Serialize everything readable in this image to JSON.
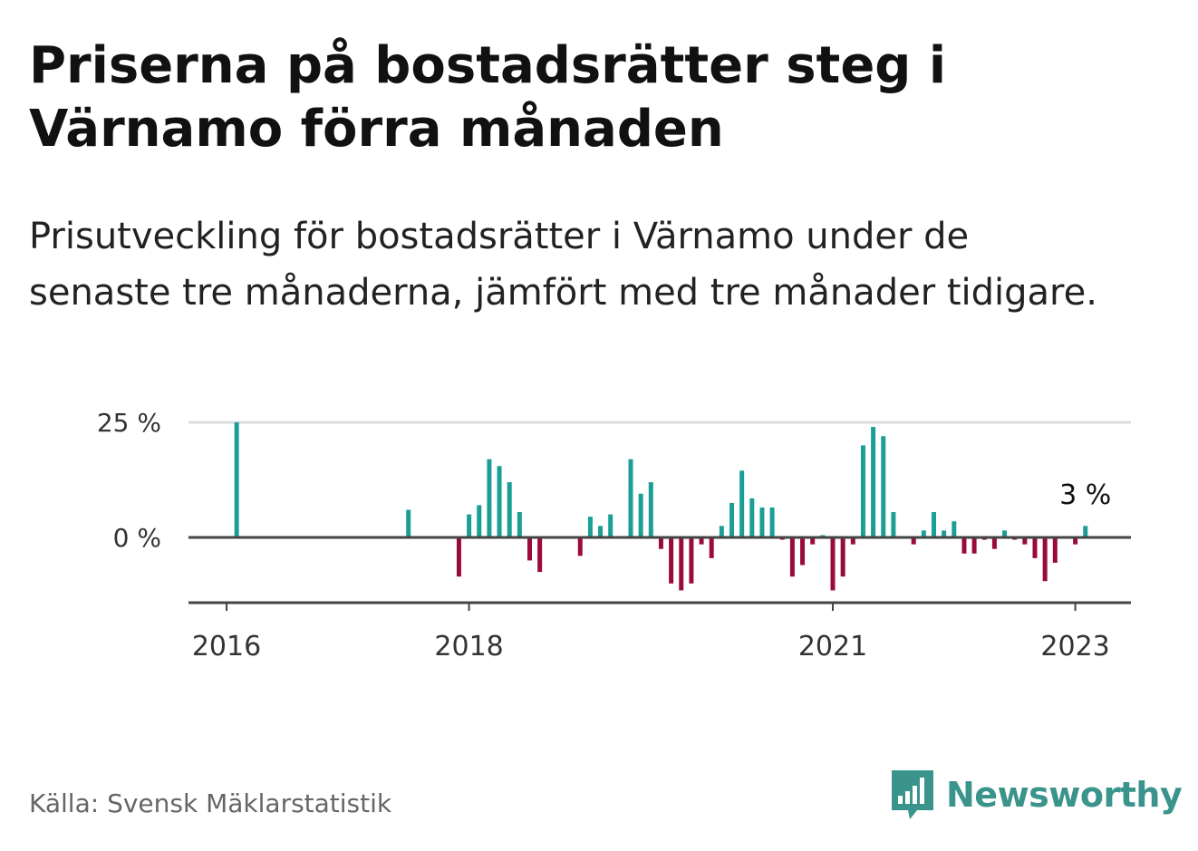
{
  "title": "Priserna på bostadsrätter steg i Värnamo förra månaden",
  "subtitle": "Prisutveckling för bostadsrätter i Värnamo under de senaste tre månaderna, jämfört med tre månader tidigare.",
  "source": "Källa: Svensk Mäklarstatistik",
  "logo_text": "Newsworthy",
  "colors": {
    "positive": "#1a9e96",
    "negative": "#9b0a3c",
    "axis": "#444444",
    "grid": "#dddddd",
    "logo": "#3a948c"
  },
  "chart_data": {
    "type": "bar",
    "title": "",
    "xlabel": "",
    "ylabel": "",
    "ylim": [
      -14,
      25
    ],
    "y_ticks": [
      {
        "value": 0,
        "label": "0 %"
      },
      {
        "value": 25,
        "label": "25 %"
      }
    ],
    "x_ticks": [
      {
        "index": 0,
        "label": "2016"
      },
      {
        "index": 24,
        "label": "2018"
      },
      {
        "index": 60,
        "label": "2021"
      },
      {
        "index": 84,
        "label": "2023"
      }
    ],
    "x_start_month": "2016-01",
    "last_value_label": "3 %",
    "values": [
      null,
      25,
      null,
      null,
      null,
      null,
      null,
      null,
      null,
      null,
      null,
      null,
      null,
      null,
      null,
      null,
      null,
      null,
      6,
      null,
      null,
      null,
      null,
      -8.5,
      5,
      7,
      17,
      15.5,
      12,
      5.5,
      -5,
      -7.5,
      null,
      null,
      null,
      -4,
      4.5,
      2.5,
      5,
      null,
      17,
      9.5,
      12,
      -2.5,
      -10,
      -11.5,
      -10,
      -1.5,
      -4.5,
      2.5,
      7.5,
      14.5,
      8.5,
      6.5,
      6.5,
      -0.5,
      -8.5,
      -6,
      -1.5,
      0.5,
      -11.5,
      -8.5,
      -1.5,
      20,
      24,
      22,
      5.5,
      null,
      -1.5,
      1.5,
      5.5,
      1.5,
      3.5,
      -3.5,
      -3.5,
      -0.5,
      -2.5,
      1.5,
      -0.5,
      -1.5,
      -4.5,
      -9.5,
      -5.5,
      null,
      -1.5,
      2.5
    ]
  }
}
